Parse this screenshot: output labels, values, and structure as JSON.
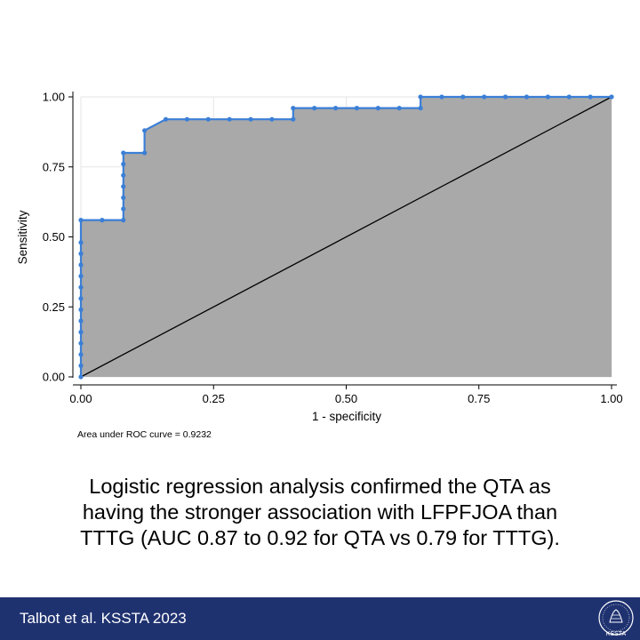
{
  "chart_data": {
    "type": "line",
    "subtype": "roc-curve",
    "xlabel": "1 - specificity",
    "ylabel": "Sensitivity",
    "xlim": [
      0,
      1
    ],
    "ylim": [
      0,
      1
    ],
    "xticks": [
      "0.00",
      "0.25",
      "0.50",
      "0.75",
      "1.00"
    ],
    "yticks": [
      "0.00",
      "0.25",
      "0.50",
      "0.75",
      "1.00"
    ],
    "grid": true,
    "note": "Area under ROC curve = 0.9232",
    "auc": 0.9232,
    "series": [
      {
        "name": "ROC curve",
        "color": "#3b7fd6",
        "fill": "#a9a9a9",
        "x": [
          0,
          0,
          0,
          0,
          0,
          0,
          0,
          0,
          0,
          0,
          0,
          0,
          0,
          0,
          0.04,
          0.08,
          0.08,
          0.08,
          0.08,
          0.08,
          0.08,
          0.08,
          0.12,
          0.12,
          0.16,
          0.2,
          0.24,
          0.28,
          0.32,
          0.36,
          0.4,
          0.4,
          0.44,
          0.48,
          0.52,
          0.56,
          0.6,
          0.64,
          0.64,
          0.68,
          0.72,
          0.76,
          0.8,
          0.84,
          0.88,
          0.92,
          0.96,
          1.0
        ],
        "y": [
          0,
          0.04,
          0.08,
          0.12,
          0.16,
          0.2,
          0.24,
          0.28,
          0.32,
          0.36,
          0.4,
          0.44,
          0.48,
          0.56,
          0.56,
          0.56,
          0.6,
          0.64,
          0.68,
          0.72,
          0.76,
          0.8,
          0.8,
          0.88,
          0.92,
          0.92,
          0.92,
          0.92,
          0.92,
          0.92,
          0.92,
          0.96,
          0.96,
          0.96,
          0.96,
          0.96,
          0.96,
          0.96,
          1.0,
          1.0,
          1.0,
          1.0,
          1.0,
          1.0,
          1.0,
          1.0,
          1.0,
          1.0
        ]
      },
      {
        "name": "Reference line",
        "color": "#000000",
        "x": [
          0,
          1
        ],
        "y": [
          0,
          1
        ]
      }
    ]
  },
  "caption": {
    "line1": "Logistic regression analysis confirmed the QTA as",
    "line2": "having the stronger association with LFPFJOA than",
    "line3": "TTTG (AUC 0.87 to 0.92 for QTA vs 0.79 for TTTG)."
  },
  "footer": {
    "citation": "Talbot et al. KSSTA 2023",
    "logo_icon": "ksssta-logo-icon",
    "logo_text": "KSSTA"
  },
  "colors": {
    "footer_bg": "#1f3270",
    "curve": "#3b7fd6",
    "area": "#a9a9a9"
  }
}
